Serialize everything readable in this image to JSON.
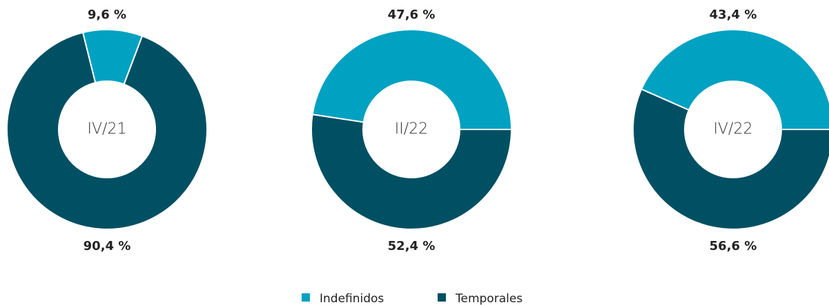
{
  "chart_data": [
    {
      "type": "pie",
      "title": "IV/21",
      "categories": [
        "Indefinidos",
        "Temporales"
      ],
      "values": [
        9.6,
        90.4
      ],
      "value_labels": [
        "9,6 %",
        "90,4 %"
      ],
      "colors": [
        "#00a1c1",
        "#004f63"
      ],
      "donut": true
    },
    {
      "type": "pie",
      "title": "II/22",
      "categories": [
        "Indefinidos",
        "Temporales"
      ],
      "values": [
        47.6,
        52.4
      ],
      "value_labels": [
        "47,6 %",
        "52,4 %"
      ],
      "colors": [
        "#00a1c1",
        "#004f63"
      ],
      "donut": true
    },
    {
      "type": "pie",
      "title": "IV/22",
      "categories": [
        "Indefinidos",
        "Temporales"
      ],
      "values": [
        43.4,
        56.6
      ],
      "value_labels": [
        "43,4 %",
        "56,6 %"
      ],
      "colors": [
        "#00a1c1",
        "#004f63"
      ],
      "donut": true
    }
  ]
}
